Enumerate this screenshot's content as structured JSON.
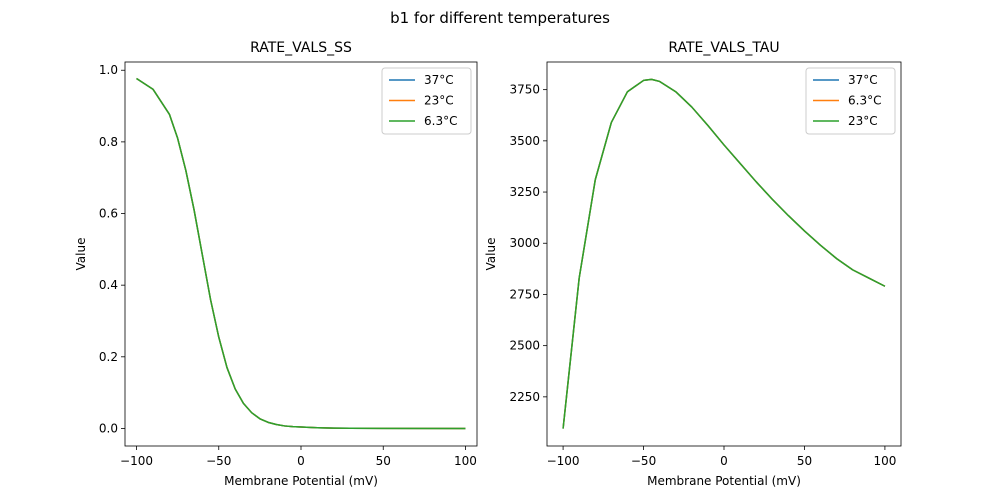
{
  "figure": {
    "suptitle": "b1 for different temperatures"
  },
  "chart_data": [
    {
      "type": "line",
      "title": "RATE_VALS_SS",
      "xlabel": "Membrane Potential (mV)",
      "ylabel": "Value",
      "xlim": [
        -107,
        107
      ],
      "ylim": [
        -0.049,
        1.023
      ],
      "xticks": [
        -100,
        -50,
        0,
        50,
        100
      ],
      "xtick_labels": [
        "−100",
        "−50",
        "0",
        "50",
        "100"
      ],
      "yticks": [
        0.0,
        0.2,
        0.4,
        0.6,
        0.8,
        1.0
      ],
      "ytick_labels": [
        "0.0",
        "0.2",
        "0.4",
        "0.6",
        "0.8",
        "1.0"
      ],
      "legend_position": "top-right",
      "x": [
        -100,
        -90,
        -80,
        -75,
        -70,
        -65,
        -60,
        -55,
        -50,
        -45,
        -40,
        -35,
        -30,
        -25,
        -20,
        -15,
        -10,
        -5,
        0,
        10,
        20,
        30,
        50,
        100
      ],
      "series": [
        {
          "name": "37°C",
          "color": "#1f77b4",
          "values": [
            0.977,
            0.947,
            0.877,
            0.81,
            0.72,
            0.61,
            0.485,
            0.36,
            0.255,
            0.17,
            0.11,
            0.07,
            0.044,
            0.027,
            0.017,
            0.011,
            0.007,
            0.005,
            0.004,
            0.002,
            0.001,
            0.0005,
            0.0002,
            0.0
          ]
        },
        {
          "name": "23°C",
          "color": "#ff7f0e",
          "values": [
            0.977,
            0.947,
            0.877,
            0.81,
            0.72,
            0.61,
            0.485,
            0.36,
            0.255,
            0.17,
            0.11,
            0.07,
            0.044,
            0.027,
            0.017,
            0.011,
            0.007,
            0.005,
            0.004,
            0.002,
            0.001,
            0.0005,
            0.0002,
            0.0
          ]
        },
        {
          "name": "6.3°C",
          "color": "#2ca02c",
          "values": [
            0.977,
            0.947,
            0.877,
            0.81,
            0.72,
            0.61,
            0.485,
            0.36,
            0.255,
            0.17,
            0.11,
            0.07,
            0.044,
            0.027,
            0.017,
            0.011,
            0.007,
            0.005,
            0.004,
            0.002,
            0.001,
            0.0005,
            0.0002,
            0.0
          ]
        }
      ]
    },
    {
      "type": "line",
      "title": "RATE_VALS_TAU",
      "xlabel": "Membrane Potential (mV)",
      "ylabel": "Value",
      "xlim": [
        -110,
        110
      ],
      "ylim": [
        2010,
        3885
      ],
      "xticks": [
        -100,
        -50,
        0,
        50,
        100
      ],
      "xtick_labels": [
        "−100",
        "−50",
        "0",
        "50",
        "100"
      ],
      "yticks": [
        2250,
        2500,
        2750,
        3000,
        3250,
        3500,
        3750
      ],
      "ytick_labels": [
        "2250",
        "2500",
        "2750",
        "3000",
        "3250",
        "3500",
        "3750"
      ],
      "legend_position": "top-right",
      "x": [
        -100,
        -90,
        -80,
        -70,
        -60,
        -50,
        -45,
        -40,
        -30,
        -20,
        -10,
        0,
        10,
        20,
        30,
        40,
        50,
        60,
        70,
        80,
        90,
        100
      ],
      "series": [
        {
          "name": "37°C",
          "color": "#1f77b4",
          "values": [
            2095,
            2830,
            3310,
            3590,
            3740,
            3795,
            3800,
            3790,
            3740,
            3665,
            3575,
            3480,
            3390,
            3300,
            3215,
            3135,
            3060,
            2990,
            2925,
            2870,
            2830,
            2790
          ]
        },
        {
          "name": "6.3°C",
          "color": "#ff7f0e",
          "values": [
            2095,
            2830,
            3310,
            3590,
            3740,
            3795,
            3800,
            3790,
            3740,
            3665,
            3575,
            3480,
            3390,
            3300,
            3215,
            3135,
            3060,
            2990,
            2925,
            2870,
            2830,
            2790
          ]
        },
        {
          "name": "23°C",
          "color": "#2ca02c",
          "values": [
            2095,
            2830,
            3310,
            3590,
            3740,
            3795,
            3800,
            3790,
            3740,
            3665,
            3575,
            3480,
            3390,
            3300,
            3215,
            3135,
            3060,
            2990,
            2925,
            2870,
            2830,
            2790
          ]
        }
      ]
    }
  ]
}
